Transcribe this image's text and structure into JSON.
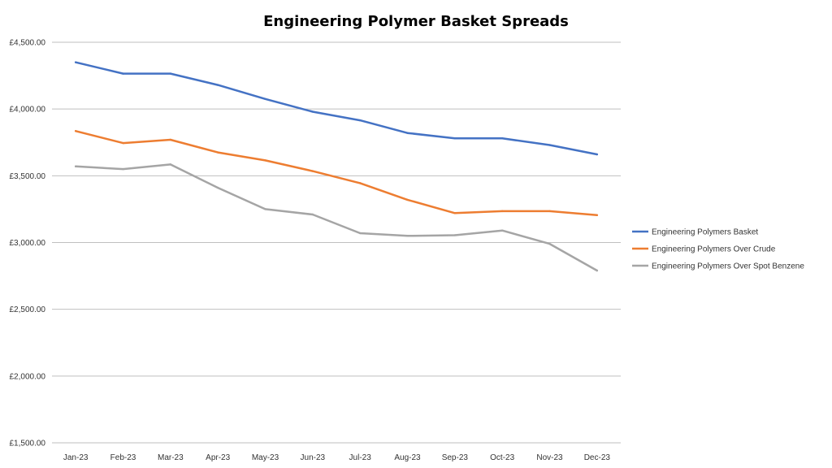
{
  "chart_data": {
    "type": "line",
    "title": "Engineering Polymer Basket Spreads",
    "xlabel": "",
    "ylabel": "",
    "categories": [
      "Jan-23",
      "Feb-23",
      "Mar-23",
      "Apr-23",
      "May-23",
      "Jun-23",
      "Jul-23",
      "Aug-23",
      "Sep-23",
      "Oct-23",
      "Nov-23",
      "Dec-23"
    ],
    "ylim": [
      1500,
      4500
    ],
    "yticks": [
      1500,
      2000,
      2500,
      3000,
      3500,
      4000,
      4500
    ],
    "ytick_labels": [
      "£1,500.00",
      "£2,000.00",
      "£2,500.00",
      "£3,000.00",
      "£3,500.00",
      "£4,000.00",
      "£4,500.00"
    ],
    "grid": true,
    "legend_position": "right",
    "series": [
      {
        "name": "Engineering Polymers Basket",
        "color": "#4472C4",
        "values": [
          4350,
          4265,
          4265,
          4180,
          4075,
          3980,
          3915,
          3820,
          3780,
          3780,
          3730,
          3660
        ]
      },
      {
        "name": "Engineering Polymers Over Crude",
        "color": "#ED7D31",
        "values": [
          3835,
          3745,
          3770,
          3675,
          3615,
          3535,
          3445,
          3320,
          3220,
          3235,
          3235,
          3205
        ]
      },
      {
        "name": "Engineering Polymers Over Spot Benzene",
        "color": "#A5A5A5",
        "values": [
          3570,
          3550,
          3585,
          3410,
          3250,
          3210,
          3070,
          3050,
          3055,
          3090,
          2990,
          2790
        ]
      }
    ]
  }
}
